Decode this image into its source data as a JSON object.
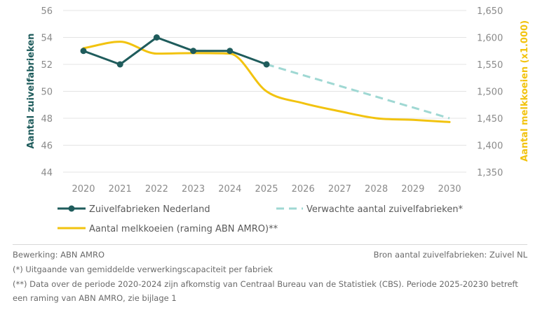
{
  "chart_data": {
    "type": "line",
    "categories": [
      "2020",
      "2021",
      "2022",
      "2023",
      "2024",
      "2025",
      "2026",
      "2027",
      "2028",
      "2029",
      "2030"
    ],
    "series": [
      {
        "name": "Zuivelfabrieken Nederland",
        "axis": "left",
        "style": "solid-markers",
        "color": "#1f5c5c",
        "x": [
          2020,
          2021,
          2022,
          2023,
          2024,
          2025
        ],
        "values": [
          53,
          52,
          54,
          53,
          53,
          52
        ]
      },
      {
        "name": "Verwachte aantal zuivelfabrieken*",
        "axis": "left",
        "style": "dashed",
        "color": "#9fd8d3",
        "x": [
          2025,
          2030
        ],
        "values": [
          52,
          48
        ]
      },
      {
        "name": "Aantal melkkoeien (raming ABN AMRO)**",
        "axis": "right",
        "style": "smooth",
        "color": "#f2c30f",
        "x": [
          2020,
          2021,
          2022,
          2023,
          2024,
          2025,
          2026,
          2027,
          2028,
          2029,
          2030
        ],
        "values": [
          1580,
          1592,
          1570,
          1571,
          1570,
          1500,
          1478,
          1463,
          1450,
          1447,
          1443
        ]
      }
    ],
    "y_left": {
      "label": "Aantal zuivelfabrieken",
      "min": 44,
      "max": 56,
      "ticks": [
        "44",
        "46",
        "48",
        "50",
        "52",
        "54",
        "56"
      ]
    },
    "y_right": {
      "label": "Aantal melkkoeien (x1.000)",
      "min": 1350,
      "max": 1650,
      "ticks": [
        "1,350",
        "1,400",
        "1,450",
        "1,500",
        "1,550",
        "1,600",
        "1,650"
      ]
    },
    "grid": true,
    "legend_position": "bottom"
  },
  "footer": {
    "source_left": "Bewerking: ABN AMRO",
    "source_right": "Bron aantal zuivelfabrieken: Zuivel NL",
    "note1": "(*) Uitgaande van gemiddelde verwerkingscapaciteit per fabriek",
    "note2": "(**) Data over de periode 2020-2024 zijn afkomstig van Centraal Bureau van de Statistiek (CBS). Periode 2025-20230 betreft een raming van ABN AMRO, zie bijlage 1"
  }
}
